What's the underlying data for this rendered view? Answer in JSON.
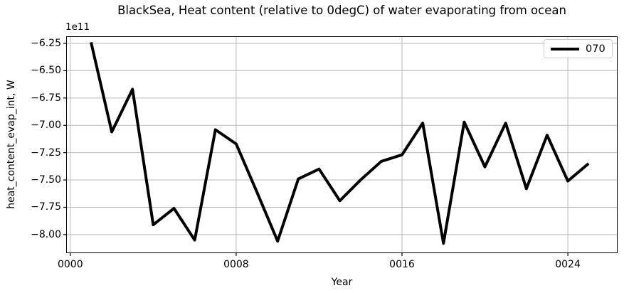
{
  "figure": {
    "title": "BlackSea, Heat content (relative to 0degC) of water evaporating from ocean",
    "offset_text": "1e11",
    "xlabel": "Year",
    "ylabel": "heat_content_evap_int, W",
    "legend": {
      "label": "070",
      "position": "upper right"
    },
    "colors": {
      "line": "#000000",
      "grid": "#b9b9b9",
      "spine": "#000000",
      "background": "#ffffff",
      "legend_border": "#cccccc"
    }
  },
  "chart_data": {
    "type": "line",
    "title": "BlackSea, Heat content (relative to 0degC) of water evaporating from ocean",
    "xlabel": "Year",
    "ylabel": "heat_content_evap_int, W",
    "y_offset_multiplier": "1e11",
    "grid": true,
    "legend_position": "upper right",
    "xlim": [
      -0.2,
      26.4
    ],
    "ylim": [
      -8.17,
      -6.185
    ],
    "xticks": {
      "values": [
        0,
        8,
        16,
        24
      ],
      "labels": [
        "0000",
        "0008",
        "0016",
        "0024"
      ]
    },
    "yticks": {
      "values": [
        -6.25,
        -6.5,
        -6.75,
        -7.0,
        -7.25,
        -7.5,
        -7.75,
        -8.0
      ],
      "labels": [
        "−6.25",
        "−6.50",
        "−6.75",
        "−7.00",
        "−7.25",
        "−7.50",
        "−7.75",
        "−8.00"
      ]
    },
    "series": [
      {
        "name": "070",
        "color": "#000000",
        "linewidth": 4,
        "x": [
          1,
          2,
          3,
          4,
          5,
          6,
          7,
          8,
          9,
          10,
          11,
          12,
          13,
          14,
          15,
          16,
          17,
          18,
          19,
          20,
          21,
          22,
          23,
          24,
          25
        ],
        "values": [
          -6.24,
          -7.06,
          -6.67,
          -7.91,
          -7.76,
          -8.05,
          -7.04,
          -7.17,
          -7.61,
          -8.06,
          -7.49,
          -7.4,
          -7.69,
          -7.5,
          -7.33,
          -7.27,
          -6.98,
          -8.08,
          -6.97,
          -7.38,
          -6.98,
          -7.58,
          -7.09,
          -7.51,
          -7.35
        ]
      }
    ]
  }
}
